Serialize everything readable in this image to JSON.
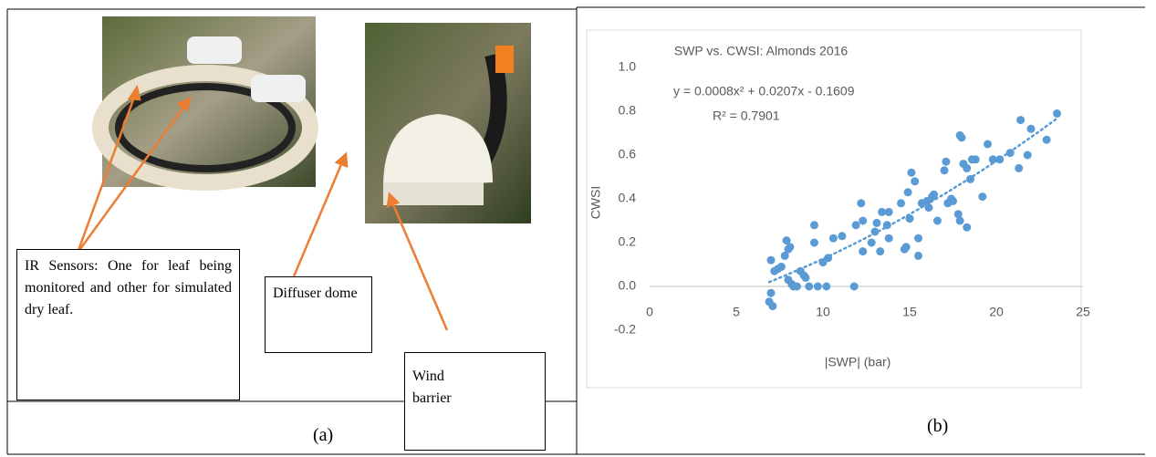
{
  "panel_a": {
    "callouts": [
      "IR Sensors: One for leaf being monitored and other for simulated dry leaf.",
      "Diffuser dome",
      "Wind barrier"
    ],
    "caption": "(a)"
  },
  "panel_b": {
    "caption": "(b)"
  },
  "chart_data": {
    "type": "scatter",
    "title": "SWP vs. CWSI: Almonds 2016",
    "x_label": "|SWP| (bar)",
    "y_label": "CWSI",
    "color": "#5b9bd5",
    "x": [
      6.9,
      7.1,
      7.0,
      7.0,
      7.2,
      7.4,
      7.6,
      7.8,
      7.9,
      8.0,
      8.1,
      8.0,
      8.2,
      8.3,
      8.5,
      8.7,
      8.9,
      9.0,
      9.2,
      9.5,
      9.5,
      9.7,
      10.0,
      10.2,
      10.3,
      10.6,
      11.1,
      11.8,
      11.9,
      12.2,
      12.3,
      12.3,
      12.8,
      13.0,
      13.1,
      13.3,
      13.4,
      13.7,
      13.8,
      13.8,
      14.5,
      14.7,
      14.8,
      14.9,
      15.0,
      15.1,
      15.3,
      15.5,
      15.5,
      15.7,
      16.0,
      16.1,
      16.3,
      16.4,
      16.6,
      17.0,
      17.1,
      17.2,
      17.4,
      17.5,
      17.8,
      17.9,
      17.9,
      18.0,
      18.1,
      18.3,
      18.3,
      18.5,
      18.6,
      18.8,
      19.2,
      19.5,
      19.8,
      20.2,
      20.8,
      21.3,
      21.4,
      21.8,
      22.0,
      22.9,
      23.5
    ],
    "values": [
      -0.07,
      -0.09,
      -0.03,
      0.12,
      0.07,
      0.08,
      0.09,
      0.14,
      0.21,
      0.17,
      0.18,
      0.03,
      0.01,
      0.0,
      0.0,
      0.07,
      0.05,
      0.04,
      0.0,
      0.28,
      0.2,
      0.0,
      0.11,
      0.0,
      0.13,
      0.22,
      0.23,
      0.0,
      0.28,
      0.38,
      0.3,
      0.16,
      0.2,
      0.25,
      0.29,
      0.16,
      0.34,
      0.28,
      0.34,
      0.22,
      0.38,
      0.17,
      0.18,
      0.43,
      0.31,
      0.52,
      0.48,
      0.14,
      0.22,
      0.38,
      0.39,
      0.36,
      0.41,
      0.42,
      0.3,
      0.53,
      0.57,
      0.38,
      0.4,
      0.39,
      0.33,
      0.69,
      0.3,
      0.68,
      0.56,
      0.54,
      0.27,
      0.49,
      0.58,
      0.58,
      0.41,
      0.65,
      0.58,
      0.58,
      0.61,
      0.54,
      0.76,
      0.6,
      0.72,
      0.67,
      0.79
    ],
    "trendline": {
      "equation": "y = 0.0008x² + 0.0207x - 0.1609",
      "r_squared": "R² = 0.7901",
      "coefficients": [
        0.0008,
        0.0207,
        -0.1609
      ]
    },
    "xlim": [
      0,
      25
    ],
    "xticks": [
      0,
      5,
      10,
      15,
      20,
      25
    ],
    "ylim": [
      -0.2,
      1.0
    ],
    "yticks": [
      -0.2,
      {
        "value": 0,
        "label": "0.0"
      },
      0.2,
      0.4,
      0.6,
      0.8,
      {
        "value": 1,
        "label": "1.0"
      }
    ]
  }
}
